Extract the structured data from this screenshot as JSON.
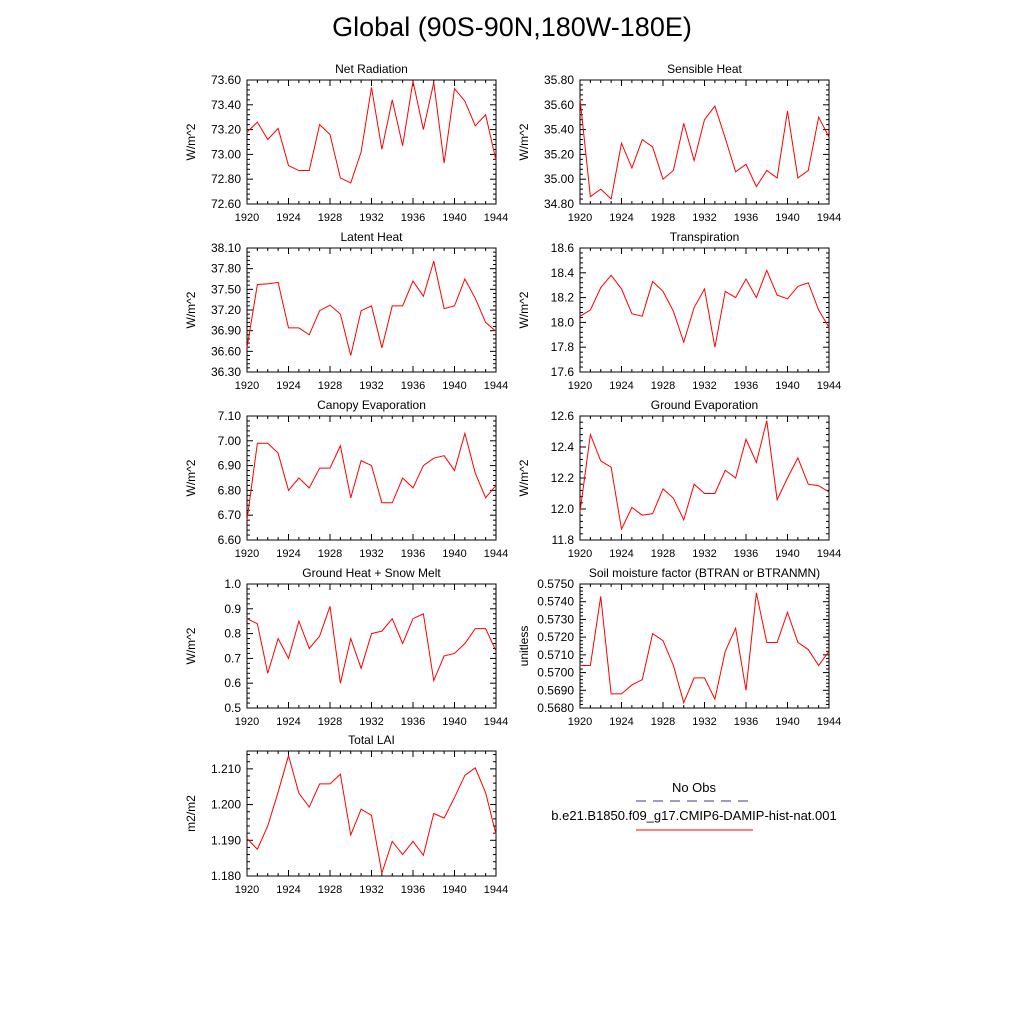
{
  "page_title": "Global (90S-90N,180W-180E)",
  "years": [
    1920,
    1921,
    1922,
    1923,
    1924,
    1925,
    1926,
    1927,
    1928,
    1929,
    1930,
    1931,
    1932,
    1933,
    1934,
    1935,
    1936,
    1937,
    1938,
    1939,
    1940,
    1941,
    1942,
    1943,
    1944
  ],
  "line_color": "#ff0000",
  "obs_color": "#3a3a9a",
  "legend": {
    "obs_label": "No Obs",
    "model_label": "b.e21.B1850.f09_g17.CMIP6-DAMIP-hist-nat.001"
  },
  "chart_data": [
    {
      "type": "line",
      "title": "Net Radiation",
      "ylabel": "W/m^2",
      "xlim": [
        1920,
        1944
      ],
      "ylim": [
        72.6,
        73.6
      ],
      "yticks": [
        "72.60",
        "72.80",
        "73.00",
        "73.20",
        "73.40",
        "73.60"
      ],
      "xticks": [
        "1920",
        "1924",
        "1928",
        "1932",
        "1936",
        "1940",
        "1944"
      ],
      "series": [
        {
          "values": [
            73.18,
            73.26,
            73.12,
            73.21,
            72.91,
            72.87,
            72.87,
            73.24,
            73.16,
            72.81,
            72.77,
            73.02,
            73.54,
            73.04,
            73.44,
            73.07,
            73.59,
            73.2,
            73.58,
            72.93,
            73.53,
            73.43,
            73.23,
            73.32,
            72.95
          ]
        }
      ]
    },
    {
      "type": "line",
      "title": "Sensible Heat",
      "ylabel": "W/m^2",
      "xlim": [
        1920,
        1944
      ],
      "ylim": [
        34.8,
        35.8
      ],
      "yticks": [
        "34.80",
        "35.00",
        "35.20",
        "35.40",
        "35.60",
        "35.80"
      ],
      "xticks": [
        "1920",
        "1924",
        "1928",
        "1932",
        "1936",
        "1940",
        "1944"
      ],
      "series": [
        {
          "values": [
            35.65,
            34.86,
            34.92,
            34.84,
            35.29,
            35.09,
            35.32,
            35.26,
            35.0,
            35.07,
            35.45,
            35.15,
            35.48,
            35.59,
            35.33,
            35.06,
            35.12,
            34.94,
            35.07,
            35.01,
            35.55,
            35.01,
            35.07,
            35.5,
            35.34
          ]
        }
      ]
    },
    {
      "type": "line",
      "title": "Latent Heat",
      "ylabel": "W/m^2",
      "xlim": [
        1920,
        1944
      ],
      "ylim": [
        36.3,
        38.1
      ],
      "yticks": [
        "36.30",
        "36.60",
        "36.90",
        "37.20",
        "37.50",
        "37.80",
        "38.10"
      ],
      "xticks": [
        "1920",
        "1924",
        "1928",
        "1932",
        "1936",
        "1940",
        "1944"
      ],
      "series": [
        {
          "values": [
            36.65,
            37.57,
            37.58,
            37.6,
            36.94,
            36.94,
            36.84,
            37.19,
            37.27,
            37.14,
            36.54,
            37.19,
            37.26,
            36.65,
            37.26,
            37.26,
            37.62,
            37.4,
            37.91,
            37.22,
            37.26,
            37.65,
            37.37,
            37.02,
            36.89
          ]
        }
      ]
    },
    {
      "type": "line",
      "title": "Transpiration",
      "ylabel": "W/m^2",
      "xlim": [
        1920,
        1944
      ],
      "ylim": [
        17.6,
        18.6
      ],
      "yticks": [
        "17.6",
        "17.8",
        "18.0",
        "18.2",
        "18.4",
        "18.6"
      ],
      "xticks": [
        "1920",
        "1924",
        "1928",
        "1932",
        "1936",
        "1940",
        "1944"
      ],
      "series": [
        {
          "values": [
            18.05,
            18.1,
            18.28,
            18.38,
            18.27,
            18.07,
            18.05,
            18.33,
            18.25,
            18.09,
            17.84,
            18.12,
            18.27,
            17.8,
            18.25,
            18.2,
            18.35,
            18.2,
            18.42,
            18.22,
            18.19,
            18.29,
            18.32,
            18.1,
            17.96
          ]
        }
      ]
    },
    {
      "type": "line",
      "title": "Canopy Evaporation",
      "ylabel": "W/m^2",
      "xlim": [
        1920,
        1944
      ],
      "ylim": [
        6.6,
        7.1
      ],
      "yticks": [
        "6.60",
        "6.70",
        "6.80",
        "6.90",
        "7.00",
        "7.10"
      ],
      "xticks": [
        "1920",
        "1924",
        "1928",
        "1932",
        "1936",
        "1940",
        "1944"
      ],
      "series": [
        {
          "values": [
            6.68,
            6.99,
            6.99,
            6.95,
            6.8,
            6.85,
            6.81,
            6.89,
            6.89,
            6.98,
            6.77,
            6.92,
            6.9,
            6.75,
            6.75,
            6.85,
            6.81,
            6.9,
            6.93,
            6.94,
            6.88,
            7.03,
            6.87,
            6.77,
            6.82
          ]
        }
      ]
    },
    {
      "type": "line",
      "title": "Ground Evaporation",
      "ylabel": "W/m^2",
      "xlim": [
        1920,
        1944
      ],
      "ylim": [
        11.8,
        12.6
      ],
      "yticks": [
        "11.8",
        "12.0",
        "12.2",
        "12.4",
        "12.6"
      ],
      "xticks": [
        "1920",
        "1924",
        "1928",
        "1932",
        "1936",
        "1940",
        "1944"
      ],
      "series": [
        {
          "values": [
            11.98,
            12.48,
            12.31,
            12.27,
            11.87,
            12.01,
            11.96,
            11.97,
            12.13,
            12.07,
            11.93,
            12.16,
            12.1,
            12.1,
            12.25,
            12.2,
            12.45,
            12.3,
            12.57,
            12.06,
            12.2,
            12.33,
            12.16,
            12.15,
            12.11
          ]
        }
      ]
    },
    {
      "type": "line",
      "title": "Ground Heat + Snow Melt",
      "ylabel": "W/m^2",
      "xlim": [
        1920,
        1944
      ],
      "ylim": [
        0.5,
        1.0
      ],
      "yticks": [
        "0.5",
        "0.6",
        "0.7",
        "0.8",
        "0.9",
        "1.0"
      ],
      "xticks": [
        "1920",
        "1924",
        "1928",
        "1932",
        "1936",
        "1940",
        "1944"
      ],
      "series": [
        {
          "values": [
            0.86,
            0.84,
            0.64,
            0.78,
            0.7,
            0.85,
            0.74,
            0.79,
            0.91,
            0.6,
            0.78,
            0.66,
            0.8,
            0.81,
            0.86,
            0.76,
            0.86,
            0.88,
            0.61,
            0.71,
            0.72,
            0.76,
            0.82,
            0.82,
            0.73
          ]
        }
      ]
    },
    {
      "type": "line",
      "title": "Soil moisture factor (BTRAN or BTRANMN)",
      "ylabel": "unitless",
      "xlim": [
        1920,
        1944
      ],
      "ylim": [
        0.568,
        0.575
      ],
      "yticks": [
        "0.5680",
        "0.5690",
        "0.5700",
        "0.5710",
        "0.5720",
        "0.5730",
        "0.5740",
        "0.5750"
      ],
      "xticks": [
        "1920",
        "1924",
        "1928",
        "1932",
        "1936",
        "1940",
        "1944"
      ],
      "series": [
        {
          "values": [
            0.5704,
            0.5704,
            0.5743,
            0.5688,
            0.5688,
            0.5693,
            0.5696,
            0.5722,
            0.5718,
            0.5704,
            0.5683,
            0.5697,
            0.5697,
            0.5685,
            0.5712,
            0.5725,
            0.569,
            0.5745,
            0.5717,
            0.5717,
            0.5734,
            0.5717,
            0.5713,
            0.5704,
            0.5712
          ]
        }
      ]
    },
    {
      "type": "line",
      "title": "Total LAI",
      "ylabel": "m2/m2",
      "xlim": [
        1920,
        1944
      ],
      "ylim": [
        1.18,
        1.215
      ],
      "yticks": [
        "1.180",
        "1.190",
        "1.200",
        "1.210"
      ],
      "xticks": [
        "1920",
        "1924",
        "1928",
        "1932",
        "1936",
        "1940",
        "1944"
      ],
      "series": [
        {
          "values": [
            1.1905,
            1.1875,
            1.194,
            1.2035,
            1.2137,
            1.2032,
            1.1993,
            1.2058,
            1.2058,
            1.2085,
            1.1915,
            1.1987,
            1.197,
            1.1808,
            1.1897,
            1.186,
            1.1897,
            1.1858,
            1.1975,
            1.1962,
            1.202,
            1.2082,
            1.2103,
            1.2033,
            1.1917
          ]
        }
      ]
    }
  ]
}
